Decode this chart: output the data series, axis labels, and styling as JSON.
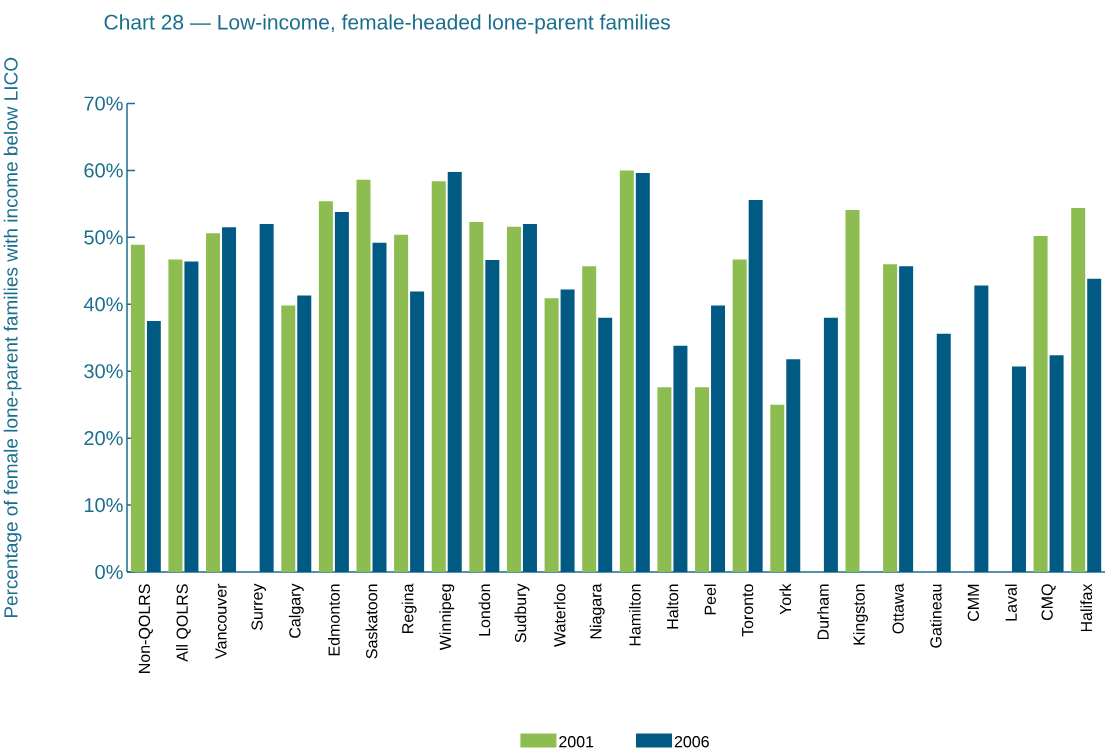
{
  "chart_data": {
    "type": "bar",
    "title": "Chart 28 — Low-income, female-headed lone-parent families",
    "ylabel": "Percentage of female lone-parent families with income below LICO",
    "categories": [
      "Non-QOLRS",
      "All QOLRS",
      "Vancouver",
      "Surrey",
      "Calgary",
      "Edmonton",
      "Saskatoon",
      "Regina",
      "Winnipeg",
      "London",
      "Sudbury",
      "Waterloo",
      "Niagara",
      "Hamilton",
      "Halton",
      "Peel",
      "Toronto",
      "York",
      "Durham",
      "Kingston",
      "Ottawa",
      "Gatineau",
      "CMM",
      "Laval",
      "CMQ",
      "Halifax"
    ],
    "series": [
      {
        "name": "2001",
        "color": "#8dbd50",
        "values": [
          48.9,
          46.7,
          50.6,
          null,
          39.8,
          55.4,
          58.6,
          50.4,
          58.4,
          52.3,
          51.6,
          40.9,
          45.7,
          60.0,
          27.6,
          27.6,
          46.7,
          25.0,
          null,
          54.1,
          46.0,
          null,
          null,
          null,
          50.2,
          54.4
        ]
      },
      {
        "name": "2006",
        "color": "#005a83",
        "values": [
          37.5,
          46.4,
          51.5,
          52.0,
          41.3,
          53.8,
          49.2,
          41.9,
          59.8,
          46.6,
          52.0,
          42.2,
          38.0,
          59.6,
          33.8,
          39.8,
          55.6,
          31.8,
          38.0,
          null,
          45.7,
          35.6,
          42.8,
          30.7,
          32.4,
          43.8
        ]
      }
    ],
    "ylim": [
      0,
      70
    ],
    "yticks": [
      {
        "value": 0,
        "label": "0%"
      },
      {
        "value": 10,
        "label": "10%"
      },
      {
        "value": 20,
        "label": "20%"
      },
      {
        "value": 30,
        "label": "30%"
      },
      {
        "value": 40,
        "label": "40%"
      },
      {
        "value": 50,
        "label": "50%"
      },
      {
        "value": 60,
        "label": "60%"
      },
      {
        "value": 70,
        "label": "70%"
      }
    ],
    "grid": false,
    "legend": "bottom"
  }
}
